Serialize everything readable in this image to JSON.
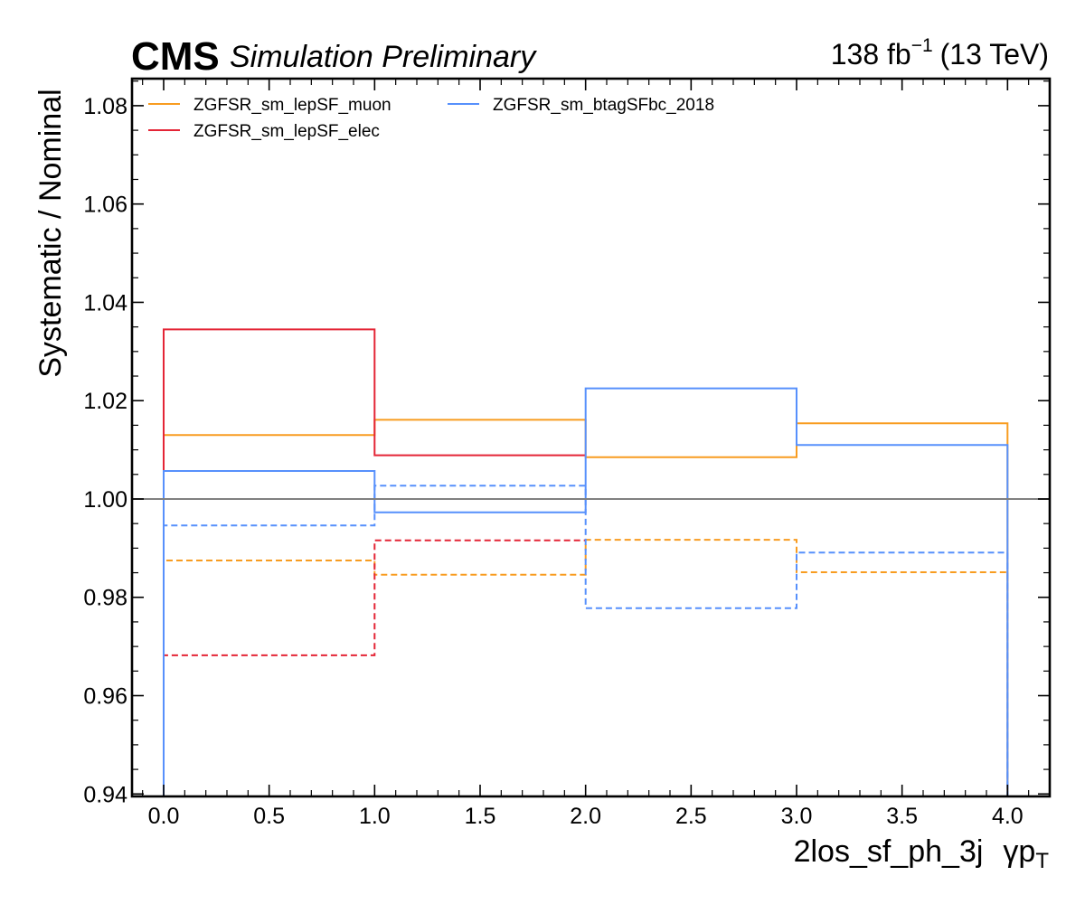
{
  "header": {
    "experiment": "CMS",
    "status": "Simulation Preliminary",
    "lumi_value": "138 fb",
    "lumi_exp": "−1",
    "energy": "(13 TeV)"
  },
  "chart_data": {
    "type": "line",
    "drawstyle": "step",
    "ylabel": "Systematic / Nominal",
    "xlabel": "2los_sf_ph_3j",
    "xlabel_variable": "γp",
    "xlabel_variable_sub": "T",
    "xlim": [
      -0.15,
      4.2
    ],
    "ylim": [
      0.9395,
      1.0855
    ],
    "x_edges": [
      0,
      1,
      2,
      3,
      4
    ],
    "x_ticks": [
      0.0,
      0.5,
      1.0,
      1.5,
      2.0,
      2.5,
      3.0,
      3.5,
      4.0
    ],
    "x_tick_labels": [
      "0.0",
      "0.5",
      "1.0",
      "1.5",
      "2.0",
      "2.5",
      "3.0",
      "3.5",
      "4.0"
    ],
    "y_ticks": [
      0.94,
      0.96,
      0.98,
      1.0,
      1.02,
      1.04,
      1.06,
      1.08
    ],
    "y_tick_labels": [
      "0.94",
      "0.96",
      "0.98",
      "1.00",
      "1.02",
      "1.04",
      "1.06",
      "1.08"
    ],
    "reference_line": 1.0,
    "legend_position": "top-left",
    "grid": false,
    "series": [
      {
        "name": "ZGFSR_sm_lepSF_muon",
        "color": "#f89c20",
        "variant": "up",
        "dash": false,
        "values": [
          1.013,
          1.0161,
          1.0085,
          1.0154
        ]
      },
      {
        "name": "ZGFSR_sm_lepSF_muon",
        "color": "#f89c20",
        "variant": "down",
        "dash": true,
        "values": [
          0.9875,
          0.9846,
          0.9917,
          0.9851
        ]
      },
      {
        "name": "ZGFSR_sm_lepSF_elec",
        "color": "#e42536",
        "variant": "up",
        "dash": false,
        "values": [
          1.0345,
          1.0089,
          null,
          null
        ]
      },
      {
        "name": "ZGFSR_sm_lepSF_elec",
        "color": "#e42536",
        "variant": "down",
        "dash": true,
        "values": [
          0.9682,
          0.9916,
          null,
          null
        ]
      },
      {
        "name": "ZGFSR_sm_btagSFbc_2018",
        "color": "#5790fc",
        "variant": "up",
        "dash": false,
        "values": [
          1.0057,
          0.9973,
          1.0225,
          1.011
        ]
      },
      {
        "name": "ZGFSR_sm_btagSFbc_2018",
        "color": "#5790fc",
        "variant": "down",
        "dash": true,
        "values": [
          0.9946,
          1.0027,
          0.9778,
          0.9891
        ]
      }
    ],
    "legend": [
      {
        "label": "ZGFSR_sm_lepSF_muon",
        "color": "#f89c20"
      },
      {
        "label": "ZGFSR_sm_lepSF_elec",
        "color": "#e42536"
      },
      {
        "label": "ZGFSR_sm_btagSFbc_2018",
        "color": "#5790fc"
      }
    ]
  }
}
